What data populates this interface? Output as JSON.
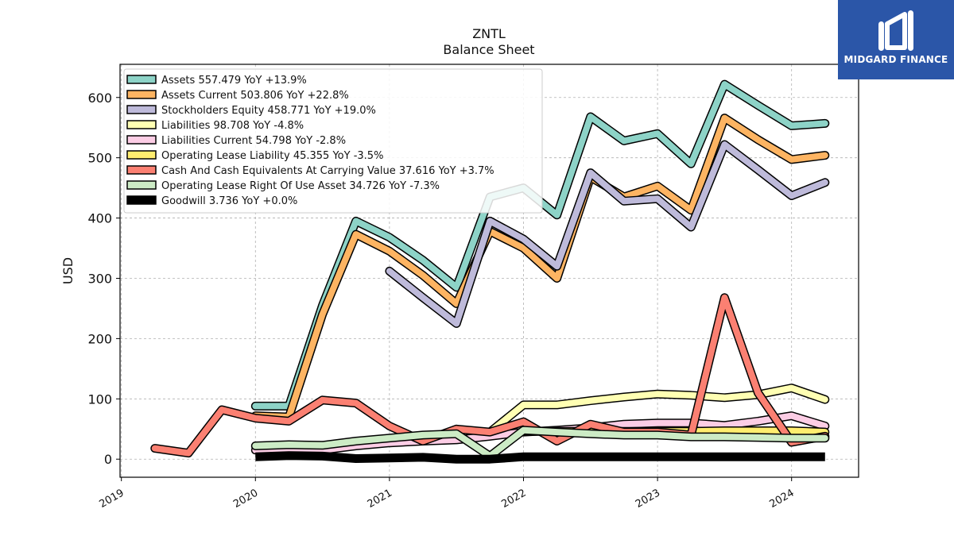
{
  "brand": {
    "name": "MIDGARD FINANCE",
    "logo_icon": "midgard-logo-icon",
    "color": "#2b56a8"
  },
  "chart_data": {
    "type": "line",
    "title": "ZNTL",
    "subtitle": "Balance  Sheet",
    "ylabel": "USD",
    "xlabel": "",
    "ylim": [
      -30,
      655
    ],
    "xlim": [
      2018.99,
      2024.5
    ],
    "yticks": [
      0,
      100,
      200,
      300,
      400,
      500,
      600
    ],
    "xticks": [
      {
        "label": "2019",
        "value": 2019
      },
      {
        "label": "2020",
        "value": 2020
      },
      {
        "label": "2021",
        "value": 2021
      },
      {
        "label": "2022",
        "value": 2022
      },
      {
        "label": "2023",
        "value": 2023
      },
      {
        "label": "2024",
        "value": 2024
      }
    ],
    "grid": true,
    "legend_position": "upper-left",
    "series": [
      {
        "name": "Assets  557.479 YoY +13.9%",
        "color": "#8dd3c7",
        "width": 8,
        "points": [
          [
            2020.0,
            88
          ],
          [
            2020.25,
            88
          ],
          [
            2020.5,
            255
          ],
          [
            2020.75,
            395
          ],
          [
            2021.0,
            368
          ],
          [
            2021.25,
            330
          ],
          [
            2021.5,
            285
          ],
          [
            2021.75,
            435
          ],
          [
            2022.0,
            450
          ],
          [
            2022.25,
            405
          ],
          [
            2022.5,
            568
          ],
          [
            2022.75,
            528
          ],
          [
            2023.0,
            540
          ],
          [
            2023.25,
            490
          ],
          [
            2023.5,
            622
          ],
          [
            2023.75,
            587
          ],
          [
            2024.0,
            553
          ],
          [
            2024.25,
            557
          ]
        ]
      },
      {
        "name": "Assets Current  503.806 YoY +22.8%",
        "color": "#fdb462",
        "width": 8,
        "points": [
          [
            2020.0,
            72
          ],
          [
            2020.25,
            70
          ],
          [
            2020.5,
            240
          ],
          [
            2020.75,
            373
          ],
          [
            2021.0,
            345
          ],
          [
            2021.25,
            305
          ],
          [
            2021.5,
            258
          ],
          [
            2021.75,
            378
          ],
          [
            2022.0,
            350
          ],
          [
            2022.25,
            300
          ],
          [
            2022.5,
            468
          ],
          [
            2022.75,
            435
          ],
          [
            2023.0,
            453
          ],
          [
            2023.25,
            413
          ],
          [
            2023.5,
            566
          ],
          [
            2023.75,
            530
          ],
          [
            2024.0,
            497
          ],
          [
            2024.25,
            504
          ]
        ]
      },
      {
        "name": "Stockholders Equity  458.771 YoY +19.0%",
        "color": "#bebada",
        "width": 8,
        "points": [
          [
            2021.0,
            312
          ],
          [
            2021.25,
            268
          ],
          [
            2021.5,
            225
          ],
          [
            2021.75,
            395
          ],
          [
            2022.0,
            365
          ],
          [
            2022.25,
            320
          ],
          [
            2022.5,
            475
          ],
          [
            2022.75,
            428
          ],
          [
            2023.0,
            432
          ],
          [
            2023.25,
            385
          ],
          [
            2023.5,
            522
          ],
          [
            2023.75,
            480
          ],
          [
            2024.0,
            437
          ],
          [
            2024.25,
            459
          ]
        ]
      },
      {
        "name": "Liabilities  98.708 YoY -4.8%",
        "color": "#ffffb3",
        "width": 8,
        "points": [
          [
            2021.75,
            45
          ],
          [
            2022.0,
            90
          ],
          [
            2022.25,
            90
          ],
          [
            2022.5,
            97
          ],
          [
            2022.75,
            103
          ],
          [
            2023.0,
            108
          ],
          [
            2023.25,
            106
          ],
          [
            2023.5,
            102
          ],
          [
            2023.75,
            107
          ],
          [
            2024.0,
            118
          ],
          [
            2024.25,
            99
          ]
        ]
      },
      {
        "name": "Liabilities Current  54.798 YoY -2.8%",
        "color": "#fccde5",
        "width": 8,
        "points": [
          [
            2020.0,
            15
          ],
          [
            2020.25,
            17
          ],
          [
            2020.5,
            15
          ],
          [
            2020.75,
            22
          ],
          [
            2021.0,
            27
          ],
          [
            2021.25,
            30
          ],
          [
            2021.5,
            32
          ],
          [
            2021.75,
            38
          ],
          [
            2022.0,
            45
          ],
          [
            2022.25,
            48
          ],
          [
            2022.5,
            52
          ],
          [
            2022.75,
            58
          ],
          [
            2023.0,
            60
          ],
          [
            2023.25,
            60
          ],
          [
            2023.5,
            56
          ],
          [
            2023.75,
            63
          ],
          [
            2024.0,
            72
          ],
          [
            2024.25,
            55
          ]
        ]
      },
      {
        "name": "Operating Lease Liability  45.355 YoY -3.5%",
        "color": "#ffed6f",
        "width": 8,
        "points": [
          [
            2022.0,
            46
          ],
          [
            2022.25,
            46
          ],
          [
            2022.5,
            46
          ],
          [
            2022.75,
            46
          ],
          [
            2023.0,
            46
          ],
          [
            2023.25,
            46
          ],
          [
            2023.5,
            47
          ],
          [
            2023.75,
            47
          ],
          [
            2024.0,
            47
          ],
          [
            2024.25,
            45
          ]
        ]
      },
      {
        "name": "Cash And Cash Equivalents At Carrying Value  37.616 YoY +3.7%",
        "color": "#fb8072",
        "width": 8,
        "points": [
          [
            2019.25,
            18
          ],
          [
            2019.5,
            10
          ],
          [
            2019.75,
            82
          ],
          [
            2020.0,
            68
          ],
          [
            2020.25,
            63
          ],
          [
            2020.5,
            98
          ],
          [
            2020.75,
            93
          ],
          [
            2021.0,
            55
          ],
          [
            2021.25,
            30
          ],
          [
            2021.5,
            50
          ],
          [
            2021.75,
            45
          ],
          [
            2022.0,
            62
          ],
          [
            2022.25,
            30
          ],
          [
            2022.5,
            58
          ],
          [
            2022.75,
            45
          ],
          [
            2023.0,
            45
          ],
          [
            2023.25,
            40
          ],
          [
            2023.5,
            268
          ],
          [
            2023.75,
            110
          ],
          [
            2024.0,
            28
          ],
          [
            2024.25,
            38
          ]
        ]
      },
      {
        "name": "Operating Lease Right Of Use Asset  34.726 YoY -7.3%",
        "color": "#ccebc5",
        "width": 8,
        "points": [
          [
            2020.0,
            22
          ],
          [
            2020.25,
            24
          ],
          [
            2020.5,
            23
          ],
          [
            2020.75,
            30
          ],
          [
            2021.0,
            35
          ],
          [
            2021.25,
            40
          ],
          [
            2021.5,
            42
          ],
          [
            2021.75,
            5
          ],
          [
            2022.0,
            48
          ],
          [
            2022.25,
            45
          ],
          [
            2022.5,
            42
          ],
          [
            2022.75,
            40
          ],
          [
            2023.0,
            40
          ],
          [
            2023.25,
            37
          ],
          [
            2023.5,
            37
          ],
          [
            2023.75,
            36
          ],
          [
            2024.0,
            35
          ],
          [
            2024.25,
            35
          ]
        ]
      },
      {
        "name": "Goodwill  3.736 YoY +0.0%",
        "color": "#000000",
        "width": 11,
        "points": [
          [
            2020.0,
            4
          ],
          [
            2020.25,
            6
          ],
          [
            2020.5,
            5
          ],
          [
            2020.75,
            1
          ],
          [
            2021.0,
            2
          ],
          [
            2021.25,
            3
          ],
          [
            2021.5,
            0
          ],
          [
            2021.75,
            0
          ],
          [
            2022.0,
            4
          ],
          [
            2022.25,
            4
          ],
          [
            2022.5,
            4
          ],
          [
            2022.75,
            4
          ],
          [
            2023.0,
            4
          ],
          [
            2023.25,
            4
          ],
          [
            2023.5,
            4
          ],
          [
            2023.75,
            4
          ],
          [
            2024.0,
            4
          ],
          [
            2024.25,
            4
          ]
        ]
      }
    ]
  }
}
